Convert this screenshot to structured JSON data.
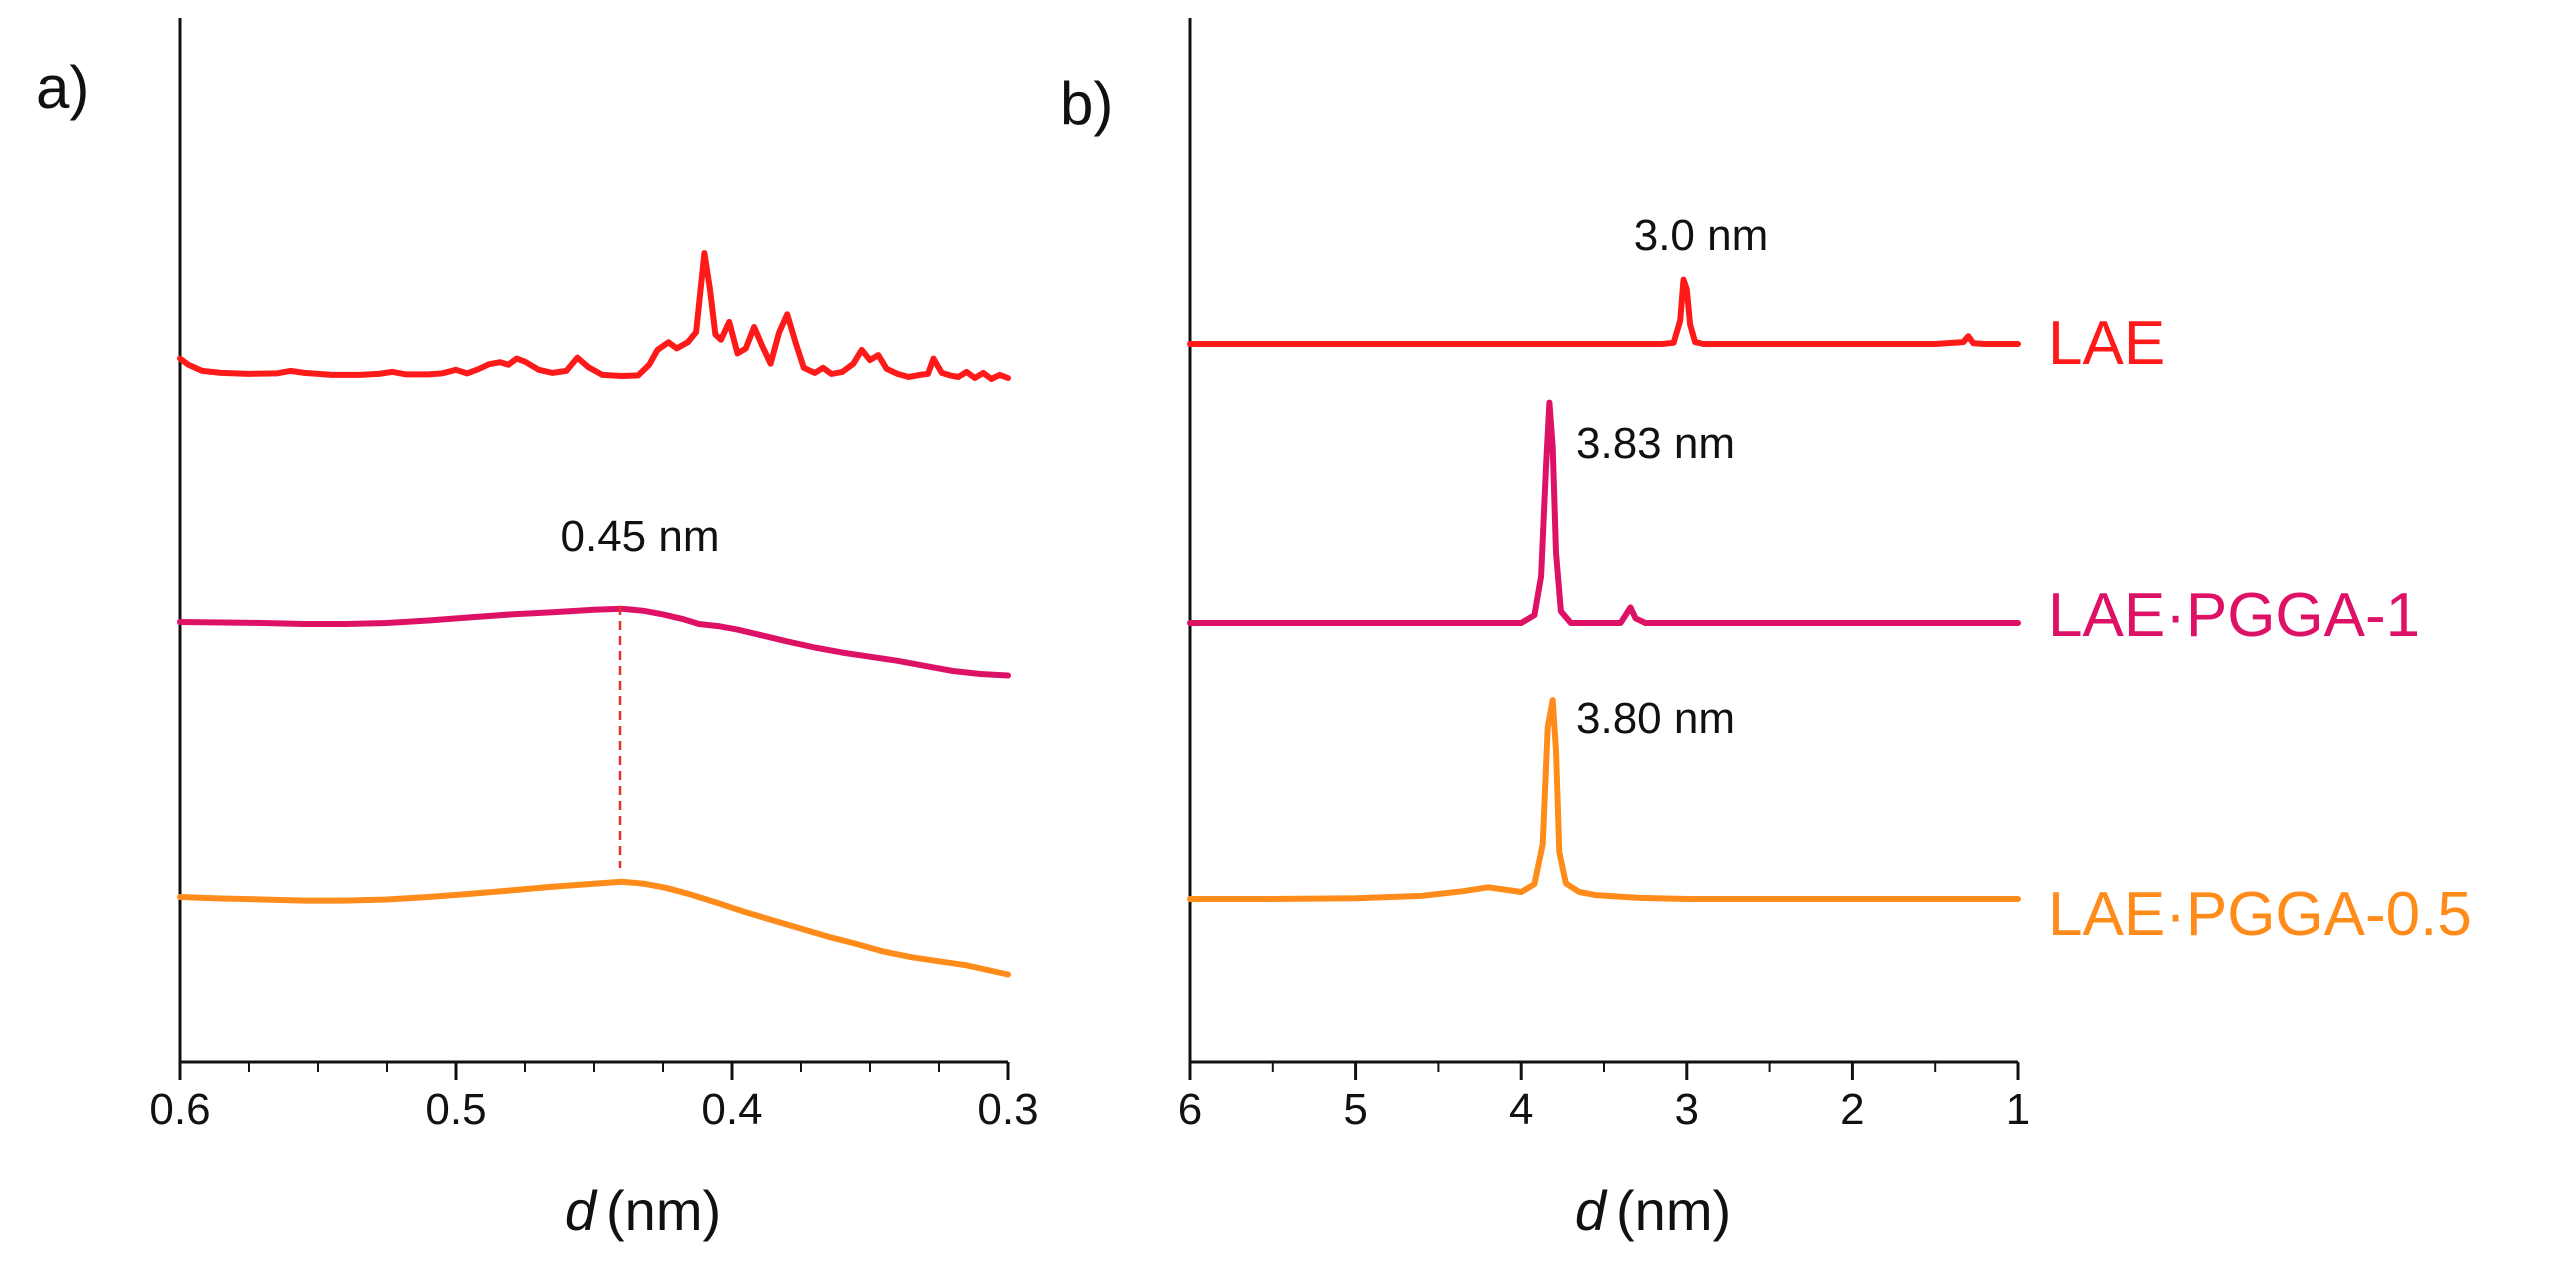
{
  "chart_data": [
    {
      "panel": "a)",
      "type": "line",
      "xlabel_italic": "d",
      "xlabel_unit": "(nm)",
      "xlim": [
        0.6,
        0.3
      ],
      "x_ticks": [
        "0.6",
        "0.5",
        "0.4",
        "0.3"
      ],
      "y_axis": "intensity (arbitrary, stacked, no ticks)",
      "annotations": [
        {
          "text": "0.45 nm",
          "x": 0.44
        }
      ],
      "series": [
        {
          "name": "LAE",
          "color": "#ff1a1a",
          "points": [
            [
              0.6,
              0.38
            ],
            [
              0.597,
              0.26
            ],
            [
              0.592,
              0.14
            ],
            [
              0.585,
              0.1
            ],
            [
              0.575,
              0.08
            ],
            [
              0.565,
              0.09
            ],
            [
              0.56,
              0.14
            ],
            [
              0.555,
              0.1
            ],
            [
              0.545,
              0.06
            ],
            [
              0.535,
              0.06
            ],
            [
              0.528,
              0.08
            ],
            [
              0.523,
              0.12
            ],
            [
              0.518,
              0.07
            ],
            [
              0.51,
              0.07
            ],
            [
              0.505,
              0.09
            ],
            [
              0.5,
              0.16
            ],
            [
              0.496,
              0.09
            ],
            [
              0.492,
              0.17
            ],
            [
              0.488,
              0.27
            ],
            [
              0.484,
              0.31
            ],
            [
              0.481,
              0.26
            ],
            [
              0.478,
              0.38
            ],
            [
              0.475,
              0.32
            ],
            [
              0.47,
              0.16
            ],
            [
              0.465,
              0.1
            ],
            [
              0.46,
              0.14
            ],
            [
              0.456,
              0.4
            ],
            [
              0.452,
              0.21
            ],
            [
              0.447,
              0.06
            ],
            [
              0.44,
              0.04
            ],
            [
              0.434,
              0.05
            ],
            [
              0.43,
              0.26
            ],
            [
              0.427,
              0.55
            ],
            [
              0.423,
              0.7
            ],
            [
              0.42,
              0.58
            ],
            [
              0.416,
              0.7
            ],
            [
              0.413,
              0.9
            ],
            [
              0.41,
              2.45
            ],
            [
              0.408,
              1.75
            ],
            [
              0.406,
              0.85
            ],
            [
              0.404,
              0.75
            ],
            [
              0.401,
              1.1
            ],
            [
              0.398,
              0.48
            ],
            [
              0.395,
              0.58
            ],
            [
              0.392,
              1.0
            ],
            [
              0.389,
              0.62
            ],
            [
              0.386,
              0.28
            ],
            [
              0.383,
              0.88
            ],
            [
              0.38,
              1.25
            ],
            [
              0.377,
              0.7
            ],
            [
              0.374,
              0.2
            ],
            [
              0.37,
              0.1
            ],
            [
              0.367,
              0.2
            ],
            [
              0.364,
              0.08
            ],
            [
              0.36,
              0.12
            ],
            [
              0.356,
              0.28
            ],
            [
              0.353,
              0.55
            ],
            [
              0.35,
              0.35
            ],
            [
              0.347,
              0.45
            ],
            [
              0.344,
              0.18
            ],
            [
              0.34,
              0.08
            ],
            [
              0.336,
              0.02
            ],
            [
              0.332,
              0.06
            ],
            [
              0.329,
              0.08
            ],
            [
              0.327,
              0.38
            ],
            [
              0.324,
              0.1
            ],
            [
              0.321,
              0.05
            ],
            [
              0.318,
              0.02
            ],
            [
              0.315,
              0.12
            ],
            [
              0.312,
              0.0
            ],
            [
              0.309,
              0.1
            ],
            [
              0.306,
              -0.02
            ],
            [
              0.303,
              0.06
            ],
            [
              0.3,
              0.0
            ]
          ]
        },
        {
          "name": "LAE·PGGA-1",
          "color": "#dd1166",
          "points": [
            [
              0.6,
              0.0
            ],
            [
              0.585,
              -0.01
            ],
            [
              0.57,
              -0.02
            ],
            [
              0.555,
              -0.04
            ],
            [
              0.54,
              -0.04
            ],
            [
              0.525,
              -0.02
            ],
            [
              0.51,
              0.03
            ],
            [
              0.495,
              0.09
            ],
            [
              0.48,
              0.15
            ],
            [
              0.465,
              0.19
            ],
            [
              0.45,
              0.24
            ],
            [
              0.44,
              0.26
            ],
            [
              0.432,
              0.22
            ],
            [
              0.425,
              0.15
            ],
            [
              0.418,
              0.06
            ],
            [
              0.412,
              -0.04
            ],
            [
              0.405,
              -0.08
            ],
            [
              0.398,
              -0.15
            ],
            [
              0.39,
              -0.25
            ],
            [
              0.38,
              -0.38
            ],
            [
              0.37,
              -0.5
            ],
            [
              0.36,
              -0.6
            ],
            [
              0.35,
              -0.68
            ],
            [
              0.34,
              -0.76
            ],
            [
              0.33,
              -0.86
            ],
            [
              0.32,
              -0.96
            ],
            [
              0.31,
              -1.02
            ],
            [
              0.3,
              -1.05
            ]
          ]
        },
        {
          "name": "LAE·PGGA-0.5",
          "color": "#ff8c1a",
          "points": [
            [
              0.6,
              0.0
            ],
            [
              0.585,
              -0.03
            ],
            [
              0.57,
              -0.05
            ],
            [
              0.555,
              -0.07
            ],
            [
              0.54,
              -0.07
            ],
            [
              0.525,
              -0.05
            ],
            [
              0.51,
              0.0
            ],
            [
              0.495,
              0.06
            ],
            [
              0.48,
              0.13
            ],
            [
              0.465,
              0.2
            ],
            [
              0.45,
              0.26
            ],
            [
              0.44,
              0.3
            ],
            [
              0.432,
              0.26
            ],
            [
              0.424,
              0.18
            ],
            [
              0.415,
              0.05
            ],
            [
              0.405,
              -0.12
            ],
            [
              0.395,
              -0.3
            ],
            [
              0.385,
              -0.46
            ],
            [
              0.375,
              -0.62
            ],
            [
              0.365,
              -0.78
            ],
            [
              0.355,
              -0.92
            ],
            [
              0.345,
              -1.07
            ],
            [
              0.335,
              -1.18
            ],
            [
              0.325,
              -1.26
            ],
            [
              0.315,
              -1.34
            ],
            [
              0.305,
              -1.46
            ],
            [
              0.3,
              -1.52
            ]
          ]
        }
      ]
    },
    {
      "panel": "b)",
      "type": "line",
      "xlabel_italic": "d",
      "xlabel_unit": "(nm)",
      "xlim": [
        6,
        1
      ],
      "x_ticks": [
        "6",
        "5",
        "4",
        "3",
        "2",
        "1"
      ],
      "y_axis": "intensity (arbitrary, stacked, no ticks)",
      "series": [
        {
          "name": "LAE",
          "color": "#ff1a1a",
          "peak_label": "3.0 nm",
          "points": [
            [
              6.0,
              0.0
            ],
            [
              3.15,
              0.0
            ],
            [
              3.08,
              0.03
            ],
            [
              3.04,
              0.6
            ],
            [
              3.02,
              1.65
            ],
            [
              3.0,
              1.4
            ],
            [
              2.98,
              0.5
            ],
            [
              2.95,
              0.05
            ],
            [
              2.9,
              0.0
            ],
            [
              1.5,
              0.0
            ],
            [
              1.33,
              0.05
            ],
            [
              1.3,
              0.2
            ],
            [
              1.27,
              0.02
            ],
            [
              1.2,
              0.0
            ],
            [
              1.0,
              0.0
            ]
          ]
        },
        {
          "name": "LAE·PGGA-1",
          "color": "#dd1166",
          "peak_label": "3.83 nm",
          "points": [
            [
              6.0,
              0.0
            ],
            [
              4.0,
              0.0
            ],
            [
              3.92,
              0.2
            ],
            [
              3.88,
              1.2
            ],
            [
              3.85,
              4.0
            ],
            [
              3.83,
              5.65
            ],
            [
              3.81,
              4.5
            ],
            [
              3.79,
              1.8
            ],
            [
              3.76,
              0.3
            ],
            [
              3.7,
              0.0
            ],
            [
              3.4,
              0.0
            ],
            [
              3.34,
              0.4
            ],
            [
              3.31,
              0.12
            ],
            [
              3.25,
              0.0
            ],
            [
              1.0,
              0.0
            ]
          ]
        },
        {
          "name": "LAE·PGGA-0.5",
          "color": "#ff8c1a",
          "peak_label": "3.80 nm",
          "points": [
            [
              6.0,
              0.0
            ],
            [
              5.5,
              0.0
            ],
            [
              5.0,
              0.02
            ],
            [
              4.6,
              0.08
            ],
            [
              4.35,
              0.2
            ],
            [
              4.2,
              0.3
            ],
            [
              4.1,
              0.24
            ],
            [
              4.0,
              0.18
            ],
            [
              3.92,
              0.38
            ],
            [
              3.87,
              1.4
            ],
            [
              3.84,
              4.4
            ],
            [
              3.81,
              5.1
            ],
            [
              3.79,
              3.8
            ],
            [
              3.77,
              1.2
            ],
            [
              3.73,
              0.4
            ],
            [
              3.65,
              0.18
            ],
            [
              3.55,
              0.1
            ],
            [
              3.3,
              0.03
            ],
            [
              3.0,
              0.0
            ],
            [
              1.0,
              0.0
            ]
          ]
        }
      ]
    }
  ]
}
